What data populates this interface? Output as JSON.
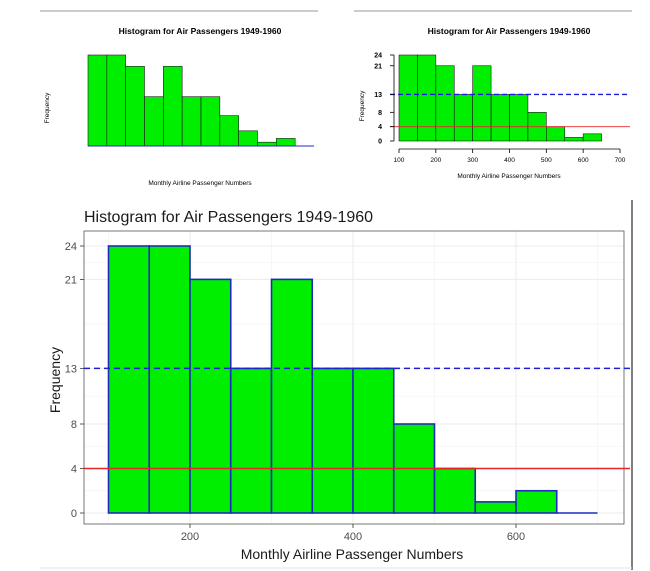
{
  "colors": {
    "bar_fill": "#00ee00",
    "bar_stroke_base": "#1a1a1a",
    "bar_stroke_gg": "#1f2bbf",
    "hline_dashed": "#1f1fd6",
    "hline_solid": "#e8262a",
    "grid": "#ebebeb"
  },
  "panels": {
    "base": {
      "title": "Histogram for Air Passengers 1949-1960",
      "xlabel": "Monthly Airline Passenger Numbers",
      "ylabel": "Frequency"
    },
    "lines": {
      "title": "Histogram for Air Passengers 1949-1960",
      "xlabel": "Monthly Airline Passenger Numbers",
      "ylabel": "Frequency",
      "x_ticks": [
        "100",
        "200",
        "300",
        "400",
        "500",
        "600",
        "700"
      ],
      "y_ticks": [
        "0",
        "4",
        "8",
        "13",
        "21",
        "24"
      ]
    },
    "gg": {
      "title": "Histogram for Air Passengers 1949-1960",
      "xlabel": "Monthly Airline Passenger Numbers",
      "ylabel": "Frequency",
      "x_ticks": [
        "200",
        "400",
        "600"
      ],
      "y_ticks": [
        "0",
        "4",
        "8",
        "13",
        "21",
        "24"
      ]
    }
  },
  "chart_data": [
    {
      "type": "bar",
      "title": "Histogram for Air Passengers 1949-1960",
      "xlabel": "Monthly Airline Passenger Numbers",
      "ylabel": "Frequency",
      "bin_edges": [
        100,
        150,
        200,
        250,
        300,
        350,
        400,
        450,
        500,
        550,
        600,
        650
      ],
      "values": [
        24,
        24,
        21,
        13,
        21,
        13,
        13,
        8,
        4,
        1,
        2
      ],
      "xlim": [
        100,
        700
      ],
      "ylim": [
        0,
        24
      ],
      "axes": "none",
      "grid": false
    },
    {
      "type": "bar",
      "title": "Histogram for Air Passengers 1949-1960",
      "xlabel": "Monthly Airline Passenger Numbers",
      "ylabel": "Frequency",
      "bin_edges": [
        100,
        150,
        200,
        250,
        300,
        350,
        400,
        450,
        500,
        550,
        600,
        650
      ],
      "values": [
        24,
        24,
        21,
        13,
        21,
        13,
        13,
        8,
        4,
        1,
        2
      ],
      "xlim": [
        100,
        700
      ],
      "ylim": [
        0,
        24
      ],
      "hlines": [
        {
          "y": 13,
          "style": "dashed"
        },
        {
          "y": 4,
          "style": "solid"
        }
      ],
      "grid": false
    },
    {
      "type": "bar",
      "title": "Histogram for Air Passengers 1949-1960",
      "xlabel": "Monthly Airline Passenger Numbers",
      "ylabel": "Frequency",
      "bin_edges": [
        100,
        150,
        200,
        250,
        300,
        350,
        400,
        450,
        500,
        550,
        600,
        650
      ],
      "values": [
        24,
        24,
        21,
        13,
        21,
        13,
        13,
        8,
        4,
        1,
        2
      ],
      "xlim": [
        100,
        700
      ],
      "ylim": [
        0,
        24
      ],
      "hlines": [
        {
          "y": 13,
          "style": "dashed"
        },
        {
          "y": 4,
          "style": "solid"
        }
      ],
      "grid": true
    }
  ]
}
